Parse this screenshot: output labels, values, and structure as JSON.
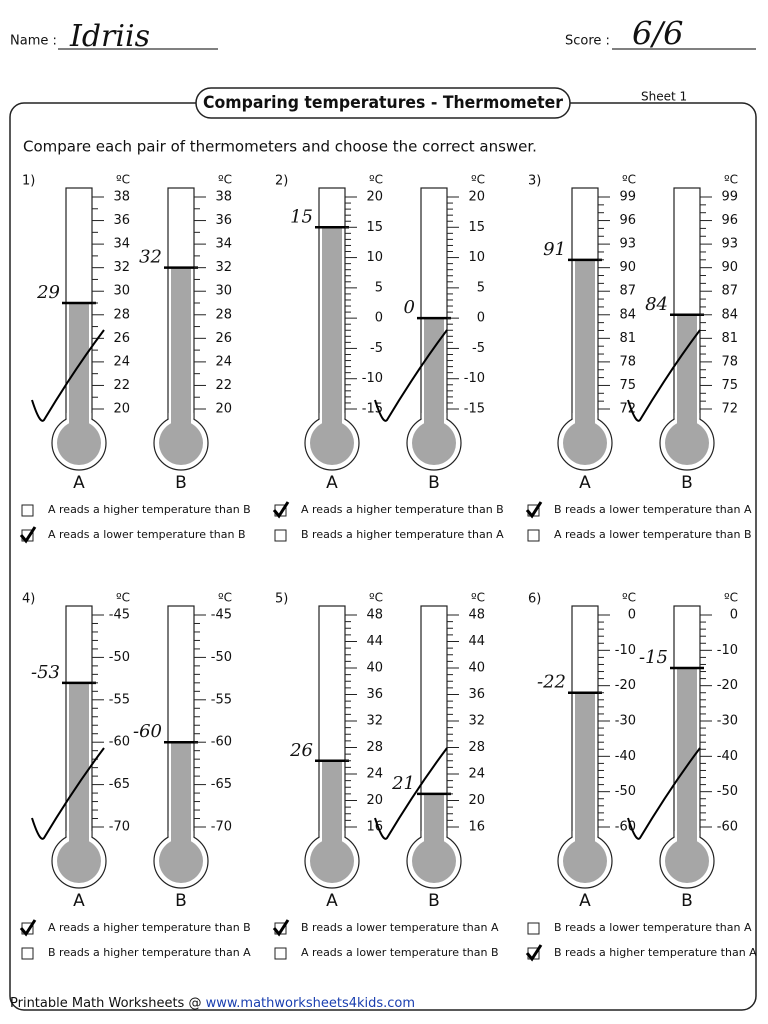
{
  "header": {
    "name_label": "Name :",
    "name": "Idriis",
    "score_label": "Score :",
    "score": "6/6",
    "title": "Comparing temperatures - Thermometer",
    "sheet": "Sheet 1",
    "instructions": "Compare each pair of thermometers and choose the correct answer."
  },
  "problems": [
    {
      "number": "1)",
      "unit": "ºC",
      "ticks": [
        38,
        36,
        34,
        32,
        30,
        28,
        26,
        24,
        22,
        20
      ],
      "thermometers": [
        {
          "label": "A",
          "level": 29,
          "note": "29"
        },
        {
          "label": "B",
          "level": 32,
          "note": "32"
        }
      ],
      "options": [
        {
          "text": "A reads a higher temperature than B",
          "checked": false
        },
        {
          "text": "A reads a lower temperature than B",
          "checked": true
        }
      ]
    },
    {
      "number": "2)",
      "unit": "ºC",
      "ticks": [
        20,
        15,
        10,
        5,
        0,
        -5,
        -10,
        -15
      ],
      "thermometers": [
        {
          "label": "A",
          "level": 15,
          "note": "15"
        },
        {
          "label": "B",
          "level": 0,
          "note": "0"
        }
      ],
      "options": [
        {
          "text": "A reads a higher temperature than B",
          "checked": true
        },
        {
          "text": "B reads a higher temperature than A",
          "checked": false
        }
      ]
    },
    {
      "number": "3)",
      "unit": "ºC",
      "ticks": [
        99,
        96,
        93,
        90,
        87,
        84,
        81,
        78,
        75,
        72
      ],
      "thermometers": [
        {
          "label": "A",
          "level": 91,
          "note": "91"
        },
        {
          "label": "B",
          "level": 84,
          "note": "84"
        }
      ],
      "options": [
        {
          "text": "B reads a lower temperature than A",
          "checked": true
        },
        {
          "text": "A reads a lower temperature than B",
          "checked": false
        }
      ]
    },
    {
      "number": "4)",
      "unit": "ºC",
      "ticks": [
        -45,
        -50,
        -55,
        -60,
        -65,
        -70
      ],
      "thermometers": [
        {
          "label": "A",
          "level": -53,
          "note": "-53"
        },
        {
          "label": "B",
          "level": -60,
          "note": "-60"
        }
      ],
      "options": [
        {
          "text": "A reads a higher temperature than B",
          "checked": true
        },
        {
          "text": "B reads a higher temperature than A",
          "checked": false
        }
      ]
    },
    {
      "number": "5)",
      "unit": "ºC",
      "ticks": [
        48,
        44,
        40,
        36,
        32,
        28,
        24,
        20,
        16
      ],
      "thermometers": [
        {
          "label": "A",
          "level": 26,
          "note": "26"
        },
        {
          "label": "B",
          "level": 21,
          "note": "21"
        }
      ],
      "options": [
        {
          "text": "B reads a lower temperature than A",
          "checked": true
        },
        {
          "text": "A reads a lower temperature than B",
          "checked": false
        }
      ]
    },
    {
      "number": "6)",
      "unit": "ºC",
      "ticks": [
        0,
        -10,
        -20,
        -30,
        -40,
        -50,
        -60
      ],
      "thermometers": [
        {
          "label": "A",
          "level": -22,
          "note": "-22"
        },
        {
          "label": "B",
          "level": -15,
          "note": "-15"
        }
      ],
      "options": [
        {
          "text": "B reads a lower temperature than A",
          "checked": false
        },
        {
          "text": "B reads a higher temperature than A",
          "checked": true
        }
      ]
    }
  ],
  "footer": {
    "text": "Printable Math Worksheets @ ",
    "link": "www.mathworksheets4kids.com"
  }
}
